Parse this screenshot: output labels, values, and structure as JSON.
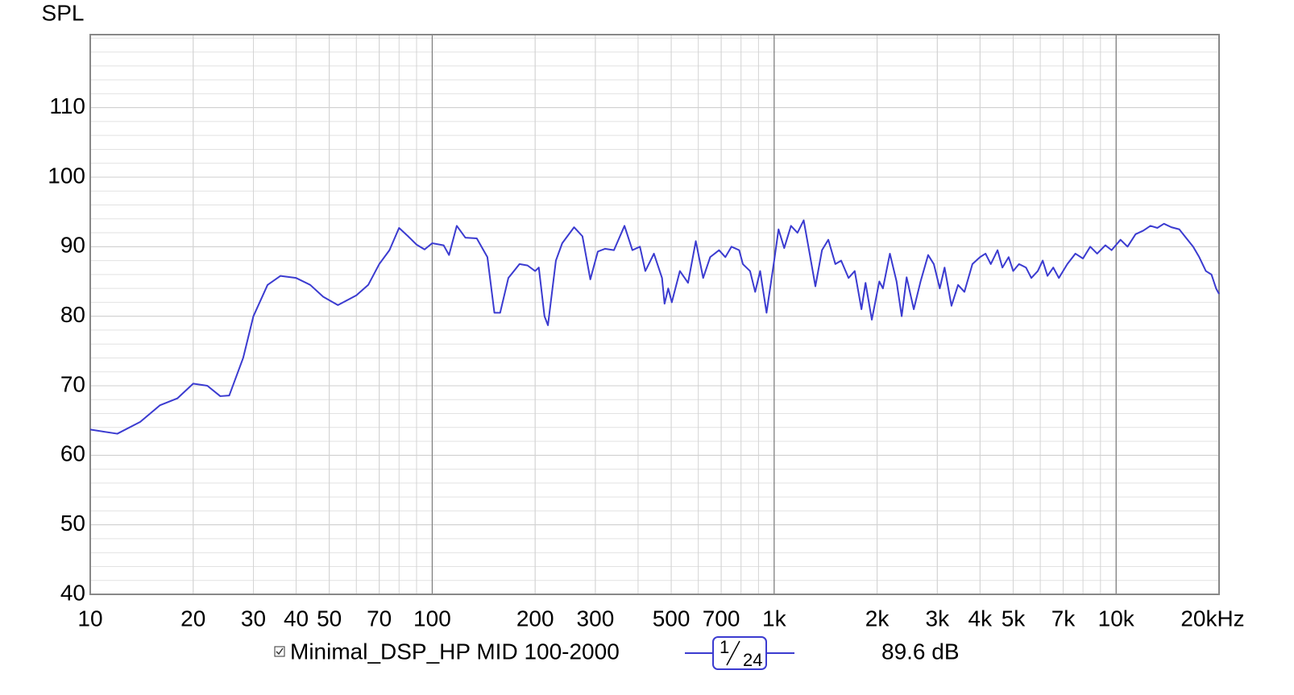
{
  "chart_data": {
    "type": "line",
    "y_axis_title": "SPL",
    "xscale": "log",
    "xlim": [
      10,
      20000
    ],
    "ylim": [
      40,
      120.5
    ],
    "yticks": [
      40,
      50,
      60,
      70,
      80,
      90,
      100,
      110
    ],
    "xticks": [
      10,
      20,
      30,
      40,
      50,
      70,
      100,
      200,
      300,
      500,
      700,
      {
        "value": 1000,
        "label": "1k"
      },
      {
        "value": 2000,
        "label": "2k"
      },
      {
        "value": 3000,
        "label": "3k"
      },
      {
        "value": 4000,
        "label": "4k"
      },
      {
        "value": 5000,
        "label": "5k"
      },
      {
        "value": 7000,
        "label": "7k"
      },
      {
        "value": 10000,
        "label": "10k"
      },
      {
        "value": 20000,
        "label": "20kHz"
      }
    ],
    "grid": true,
    "x": [
      10,
      12,
      14,
      16,
      18,
      20,
      22,
      24,
      25.5,
      28,
      30,
      33,
      36,
      40,
      44,
      48,
      53,
      60,
      65,
      70,
      75,
      80,
      85,
      90,
      95,
      100,
      108,
      112,
      118,
      125,
      135,
      145,
      152,
      158,
      167,
      180,
      190,
      200,
      205,
      213,
      218,
      230,
      240,
      260,
      275,
      290,
      305,
      320,
      340,
      365,
      385,
      405,
      420,
      445,
      470,
      478,
      490,
      502,
      530,
      560,
      590,
      620,
      650,
      690,
      720,
      750,
      790,
      810,
      850,
      880,
      910,
      950,
      1000,
      1030,
      1070,
      1120,
      1170,
      1220,
      1270,
      1320,
      1380,
      1440,
      1510,
      1570,
      1650,
      1720,
      1800,
      1850,
      1930,
      2030,
      2080,
      2180,
      2280,
      2360,
      2440,
      2560,
      2680,
      2820,
      2930,
      3050,
      3150,
      3300,
      3450,
      3600,
      3800,
      4000,
      4150,
      4300,
      4500,
      4650,
      4850,
      5000,
      5200,
      5450,
      5650,
      5900,
      6100,
      6300,
      6550,
      6800,
      7200,
      7600,
      8000,
      8400,
      8800,
      9300,
      9700,
      10300,
      10800,
      11400,
      12000,
      12600,
      13200,
      13800,
      14500,
      15300,
      16000,
      16800,
      17500,
      18300,
      19000,
      19600,
      20000
    ],
    "series": [
      {
        "name": "Minimal_DSP_HP MID 100-2000",
        "color": "#3b3bd0",
        "values": [
          63.7,
          63.1,
          64.8,
          67.2,
          68.2,
          70.3,
          70.0,
          68.5,
          68.6,
          74,
          80,
          84.5,
          85.8,
          85.5,
          84.5,
          82.8,
          81.6,
          83.0,
          84.5,
          87.5,
          89.5,
          92.7,
          91.5,
          90.3,
          89.6,
          90.5,
          90.2,
          88.8,
          93.0,
          91.3,
          91.2,
          88.5,
          80.5,
          80.5,
          85.5,
          87.5,
          87.3,
          86.5,
          87.0,
          80.0,
          78.7,
          88.0,
          90.5,
          92.8,
          91.5,
          85.3,
          89.3,
          89.7,
          89.5,
          93.0,
          89.5,
          90.0,
          86.5,
          89.0,
          85.5,
          81.8,
          84.0,
          82.0,
          86.5,
          84.8,
          90.8,
          85.5,
          88.5,
          89.5,
          88.5,
          90.0,
          89.5,
          87.5,
          86.5,
          83.5,
          86.5,
          80.5,
          88.0,
          92.5,
          89.8,
          93.0,
          92.0,
          93.8,
          89.0,
          84.3,
          89.5,
          91.0,
          87.5,
          88.0,
          85.5,
          86.5,
          81.0,
          84.8,
          79.5,
          85.0,
          84.0,
          89.0,
          85.0,
          80.0,
          85.6,
          81.0,
          85.0,
          88.8,
          87.5,
          84.0,
          87.0,
          81.5,
          84.5,
          83.5,
          87.5,
          88.5,
          89.0,
          87.5,
          89.5,
          87.0,
          88.5,
          86.5,
          87.5,
          87.0,
          85.5,
          86.5,
          88.0,
          85.8,
          87.0,
          85.5,
          87.5,
          89.0,
          88.3,
          90.0,
          89.0,
          90.2,
          89.5,
          91.0,
          90.0,
          91.8,
          92.3,
          93.0,
          92.7,
          93.3,
          92.8,
          92.5,
          91.3,
          90.0,
          88.5,
          86.5,
          86.0,
          84.0,
          83.2
        ]
      }
    ],
    "smoothing": {
      "numerator": "1",
      "denominator": "24"
    },
    "cursor_value": "89.6 dB"
  }
}
